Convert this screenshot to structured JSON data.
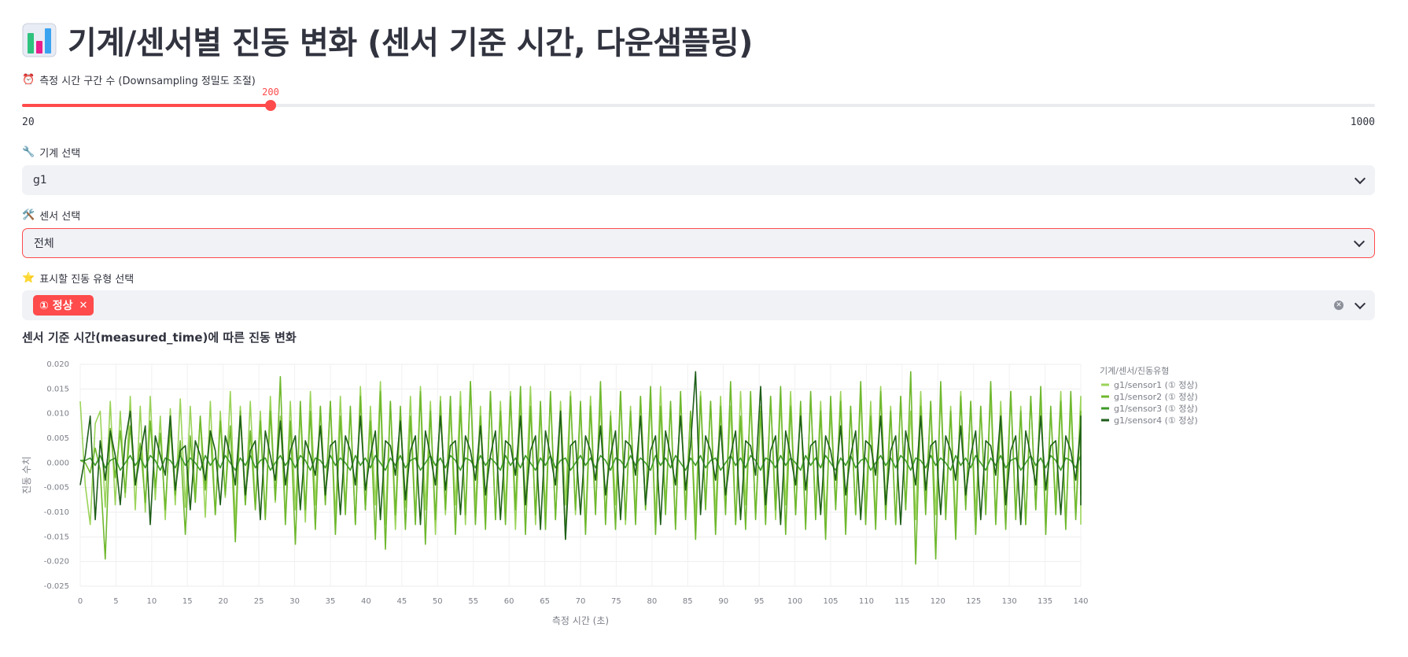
{
  "header": {
    "title": "기계/센서별 진동 변화 (센서 기준 시간, 다운샘플링)",
    "icon": "bar-chart-icon"
  },
  "slider": {
    "label": "측정 시간 구간 수 (Downsampling 정밀도 조절)",
    "icon": "alarm-clock-icon",
    "value": "200",
    "min": "20",
    "max": "1000"
  },
  "machine_select": {
    "label": "기계 선택",
    "icon": "wrench-icon",
    "value": "g1"
  },
  "sensor_select": {
    "label": "센서 선택",
    "icon": "hammer-wrench-icon",
    "value": "전체"
  },
  "vibration_type": {
    "label": "표시할 진동 유형 선택",
    "icon": "star-icon",
    "selected": [
      "① 정상"
    ]
  },
  "chart_section": {
    "heading": "센서 기준 시간(measured_time)에 따른 진동 변화"
  },
  "chart_data": {
    "type": "line",
    "xlabel": "측정 시간 (초)",
    "ylabel": "진동 수치",
    "xlim": [
      0,
      140
    ],
    "ylim": [
      -0.025,
      0.02
    ],
    "x_ticks": [
      "0",
      "5",
      "10",
      "15",
      "20",
      "25",
      "30",
      "35",
      "40",
      "45",
      "50",
      "55",
      "60",
      "65",
      "70",
      "75",
      "80",
      "85",
      "90",
      "95",
      "100",
      "105",
      "110",
      "115",
      "120",
      "125",
      "130",
      "135",
      "140"
    ],
    "y_ticks": [
      "0.020",
      "0.015",
      "0.010",
      "0.005",
      "0.000",
      "-0.005",
      "-0.010",
      "-0.015",
      "-0.020",
      "-0.025"
    ],
    "legend_title": "기계/센서/진동유형",
    "legend_position": "right",
    "grid": true,
    "x_step": 0.7,
    "series": [
      {
        "name": "g1/sensor1 (① 정상)",
        "color": "#9bd35a",
        "values": [
          0.0125,
          -0.0045,
          -0.0125,
          0.008,
          0.0105,
          -0.009,
          0.0125,
          -0.0085,
          0.0105,
          -0.007,
          0.0135,
          -0.0095,
          0.0115,
          -0.01,
          0.0135,
          -0.0075,
          0.0095,
          -0.0115,
          0.011,
          -0.0085,
          0.013,
          -0.009,
          0.0115,
          -0.0065,
          0.009,
          -0.011,
          0.0125,
          -0.0105,
          0.0105,
          -0.007,
          0.0145,
          -0.0125,
          0.0115,
          -0.0085,
          0.0125,
          -0.009,
          0.0105,
          -0.011,
          0.0135,
          -0.008,
          0.0095,
          -0.0115,
          0.0125,
          -0.0095,
          0.0105,
          -0.012,
          0.0145,
          -0.0085,
          0.0115,
          -0.0075,
          0.0125,
          -0.011,
          0.0135,
          -0.009,
          0.0105,
          -0.0125,
          0.0155,
          -0.0095,
          0.0115,
          -0.0085,
          0.0165,
          -0.0125,
          0.0125,
          -0.0135,
          0.0105,
          -0.009,
          0.0135,
          -0.0115,
          0.0155,
          -0.0095,
          0.0125,
          -0.0145,
          0.0135,
          -0.0105,
          0.0105,
          -0.0085,
          0.0145,
          -0.0125,
          0.0165,
          -0.0095,
          0.0115,
          -0.0105,
          0.0135,
          -0.0115,
          0.0125,
          -0.0095,
          0.0145,
          -0.0135,
          0.0115,
          -0.0085,
          0.0155,
          -0.0125,
          0.0105,
          -0.0095,
          0.0135,
          -0.0115,
          0.0125,
          -0.0085,
          0.0145,
          -0.0105,
          0.0115,
          -0.0125,
          0.0135,
          -0.0095,
          0.0125,
          -0.0115,
          0.0105,
          -0.0085,
          0.0145,
          -0.0125,
          0.0115,
          -0.0105,
          0.0135,
          -0.0095,
          0.0125,
          -0.0115,
          0.0155,
          -0.0085,
          0.0115,
          -0.0125,
          0.0135,
          -0.0095,
          0.0105,
          -0.0115,
          0.0145,
          -0.0085,
          0.0125,
          -0.0105,
          0.0135,
          -0.0095,
          0.0115,
          -0.0125,
          0.0145,
          -0.0085,
          0.0125,
          -0.0105,
          0.0115,
          -0.0095,
          0.0135,
          -0.0115,
          0.0125,
          -0.0085,
          0.0145,
          -0.0105,
          0.0115,
          -0.0125,
          0.0135,
          -0.0095,
          0.0125,
          -0.0115,
          0.0105,
          -0.0085,
          0.0145,
          -0.0125,
          0.0115,
          -0.0105,
          0.0135,
          -0.0095,
          0.0125,
          -0.0115,
          0.0155,
          -0.0085,
          0.0115,
          -0.0125,
          0.0135,
          -0.0095,
          0.0105,
          -0.0115,
          0.0145,
          -0.0085,
          0.0125,
          -0.0105,
          0.0135,
          -0.0095,
          0.0115,
          -0.0125,
          0.0145,
          -0.0085,
          0.0125,
          -0.0105,
          0.0115,
          -0.0095,
          0.0135,
          -0.0115,
          0.0125,
          -0.0085,
          0.0145,
          -0.0105,
          0.0115,
          -0.0125,
          0.0135,
          -0.0095,
          0.0125,
          -0.0115,
          0.0105,
          -0.0085,
          0.0145,
          -0.0125,
          0.0115,
          -0.0105,
          0.0135,
          -0.0095,
          0.0125,
          -0.0125
        ]
      },
      {
        "name": "g1/sensor2 (① 정상)",
        "color": "#6fb82e",
        "values": [
          0.0005,
          0.0,
          -0.002,
          0.003,
          -0.0015,
          -0.0195,
          0.007,
          -0.003,
          0.0065,
          -0.006,
          0.0075,
          -0.0045,
          0.004,
          -0.008,
          0.0085,
          -0.005,
          0.006,
          -0.0095,
          0.0075,
          -0.0065,
          0.0045,
          -0.0145,
          0.0055,
          -0.008,
          0.0095,
          -0.0055,
          0.0065,
          -0.0105,
          0.0085,
          -0.0065,
          0.0075,
          -0.016,
          0.0105,
          -0.0085,
          0.0065,
          -0.0095,
          0.0085,
          -0.0115,
          0.0105,
          -0.0075,
          0.0175,
          -0.0125,
          0.0085,
          -0.0165,
          0.0125,
          -0.0095,
          0.0105,
          -0.0135,
          0.0115,
          -0.0085,
          0.0125,
          -0.0145,
          0.0095,
          -0.0105,
          0.0115,
          -0.0125,
          0.0135,
          -0.0095,
          0.0085,
          -0.0155,
          0.0145,
          -0.0175,
          0.0125,
          -0.0105,
          0.0115,
          -0.0135,
          0.0095,
          -0.0125,
          0.0145,
          -0.0165,
          0.0105,
          -0.0115,
          0.0125,
          -0.0095,
          0.0135,
          -0.0145,
          0.0115,
          -0.0105,
          0.0165,
          -0.0125,
          0.0095,
          -0.0135,
          0.0145,
          -0.0115,
          0.0105,
          -0.0125,
          0.0135,
          -0.0095,
          0.0155,
          -0.0145,
          0.0115,
          -0.0105,
          0.0125,
          -0.0135,
          0.0145,
          -0.0115,
          0.0105,
          -0.0155,
          0.0135,
          -0.0095,
          0.0125,
          -0.0145,
          0.0115,
          -0.0105,
          0.0165,
          -0.0125,
          0.0095,
          -0.0135,
          0.0145,
          -0.0115,
          0.0105,
          -0.0125,
          0.0135,
          -0.0095,
          0.0155,
          -0.0145,
          0.0115,
          -0.0105,
          0.0125,
          -0.0135,
          0.0145,
          -0.0115,
          0.0105,
          -0.0155,
          0.0135,
          -0.0095,
          0.0125,
          -0.0145,
          0.0115,
          -0.0105,
          0.0165,
          -0.0125,
          0.0095,
          -0.0135,
          0.0145,
          -0.0115,
          0.0105,
          -0.0125,
          0.0135,
          -0.0095,
          0.0155,
          -0.0145,
          0.0115,
          -0.0105,
          0.0125,
          -0.0135,
          0.0145,
          -0.0115,
          0.0105,
          -0.0155,
          0.0135,
          -0.0095,
          0.0125,
          -0.0145,
          0.0115,
          -0.0105,
          0.0165,
          -0.0125,
          0.0095,
          -0.0135,
          0.0145,
          -0.0115,
          0.0105,
          -0.0125,
          0.0135,
          -0.0095,
          0.0185,
          -0.0205,
          0.0115,
          -0.0105,
          0.0125,
          -0.0195,
          0.0165,
          -0.0115,
          0.0105,
          -0.0155,
          0.0135,
          -0.0095,
          0.0125,
          -0.0145,
          0.0115,
          -0.0105,
          0.0165,
          -0.0125,
          0.0095,
          -0.0135,
          0.0145,
          -0.0115,
          0.0105,
          -0.0125,
          0.0135,
          -0.0095,
          0.0155,
          -0.0145,
          0.0115,
          -0.0105,
          0.0125,
          -0.0135,
          0.0145,
          -0.0115,
          0.0105,
          -0.0065,
          0.0045
        ]
      },
      {
        "name": "g1/sensor3 (① 정상)",
        "color": "#3f9a2a",
        "values": [
          0.0005,
          0.0005,
          0.001,
          -0.0005,
          0.0015,
          -0.001,
          0.0005,
          0.001,
          -0.0015,
          0.0,
          0.0015,
          -0.0005,
          0.001,
          -0.001,
          0.0015,
          0.0005,
          -0.0015,
          0.001,
          0.0005,
          -0.001,
          0.0015,
          -0.0005,
          0.001,
          0.0,
          -0.0015,
          0.0015,
          -0.0005,
          0.001,
          -0.001,
          0.0015,
          0.0,
          -0.0015,
          0.001,
          -0.0005,
          0.0015,
          -0.001,
          0.0005,
          0.001,
          -0.0015,
          0.0,
          0.0015,
          -0.0005,
          0.001,
          -0.001,
          0.0015,
          0.0005,
          -0.0015,
          0.001,
          0.0005,
          -0.001,
          0.0015,
          -0.0005,
          0.001,
          0.0,
          -0.0015,
          0.0015,
          -0.0005,
          0.001,
          -0.001,
          0.0015,
          0.0,
          -0.0015,
          0.001,
          -0.0005,
          0.0015,
          -0.001,
          0.0005,
          0.001,
          -0.0015,
          0.0,
          0.0015,
          -0.0005,
          0.001,
          -0.001,
          0.0015,
          0.0005,
          -0.0015,
          0.001,
          0.0005,
          -0.001,
          0.0015,
          -0.0005,
          0.001,
          0.0,
          -0.0015,
          0.0015,
          -0.0005,
          0.001,
          -0.001,
          0.0015,
          0.0,
          -0.0015,
          0.001,
          -0.0005,
          0.0015,
          -0.001,
          0.0005,
          0.001,
          -0.0015,
          0.0,
          0.0015,
          -0.0005,
          0.001,
          -0.001,
          0.0015,
          0.0005,
          -0.0015,
          0.001,
          0.0005,
          -0.001,
          0.0015,
          -0.0005,
          0.001,
          0.0,
          -0.0015,
          0.0015,
          -0.0005,
          0.001,
          -0.001,
          0.0015,
          0.0,
          -0.0015,
          0.001,
          -0.0005,
          0.0015,
          -0.001,
          0.0005,
          0.001,
          -0.0015,
          0.0,
          0.0015,
          -0.0005,
          0.001,
          -0.001,
          0.0015,
          0.0005,
          -0.0015,
          0.001,
          0.0005,
          -0.001,
          0.0015,
          -0.0005,
          0.001,
          0.0,
          -0.0015,
          0.0015,
          -0.0005,
          0.001,
          -0.001,
          0.0015,
          0.0,
          -0.0015,
          0.001,
          -0.0005,
          0.0015,
          -0.001,
          0.0005,
          0.001,
          -0.0015,
          0.0,
          0.0015,
          -0.0005,
          0.001,
          -0.001,
          0.0015,
          0.0005,
          -0.0015,
          0.001,
          0.0005,
          -0.001,
          0.0015,
          -0.0005,
          0.001,
          0.0,
          -0.0015,
          0.0015,
          -0.0005,
          0.001,
          -0.001,
          0.0015,
          0.0,
          -0.0015,
          0.001,
          -0.0005,
          0.0015,
          -0.001,
          0.0005,
          0.001,
          -0.0015,
          0.0,
          0.0015,
          -0.0005,
          0.001,
          -0.001,
          0.0015,
          0.0005,
          -0.0015,
          0.001,
          0.0005,
          -0.001,
          0.0015,
          -0.0005,
          0.001,
          0.0
        ]
      },
      {
        "name": "g1/sensor4 (① 정상)",
        "color": "#1e5e1a",
        "values": [
          -0.0045,
          0.0015,
          0.0095,
          -0.0115,
          0.0045,
          -0.0035,
          0.0065,
          0.0015,
          -0.0085,
          0.0045,
          0.0105,
          -0.0045,
          0.0015,
          0.0075,
          -0.0125,
          0.0055,
          0.0015,
          -0.0025,
          0.0095,
          -0.0055,
          0.0025,
          0.0035,
          -0.0095,
          0.0045,
          0.0015,
          -0.0035,
          0.0065,
          0.0025,
          -0.0085,
          0.0055,
          0.0015,
          -0.0045,
          0.0095,
          -0.0065,
          0.0025,
          0.0045,
          -0.0115,
          0.0065,
          0.0015,
          -0.0035,
          0.0085,
          -0.0045,
          0.0025,
          0.0055,
          -0.0095,
          0.0045,
          0.0015,
          -0.0025,
          0.0075,
          -0.0065,
          0.0035,
          0.0045,
          -0.0105,
          0.0055,
          0.0025,
          -0.0045,
          0.0095,
          -0.0055,
          0.0015,
          0.0065,
          -0.0115,
          0.0045,
          0.0035,
          -0.0025,
          0.0085,
          -0.0075,
          0.0025,
          0.0055,
          -0.0125,
          0.0065,
          0.0015,
          -0.0045,
          0.0095,
          -0.0055,
          0.0035,
          0.0045,
          -0.0105,
          0.0055,
          0.0025,
          -0.0035,
          0.0075,
          -0.0065,
          0.0015,
          0.0065,
          -0.0115,
          0.0045,
          0.0035,
          -0.0025,
          0.0095,
          -0.0085,
          0.0025,
          0.0055,
          -0.0135,
          0.0065,
          0.0015,
          -0.0045,
          0.0105,
          -0.0155,
          0.0035,
          0.0045,
          -0.0105,
          0.0055,
          0.0025,
          -0.0035,
          0.0075,
          -0.0065,
          0.0015,
          0.0065,
          -0.0115,
          0.0045,
          0.0035,
          -0.0025,
          0.0095,
          -0.0085,
          0.0025,
          0.0055,
          -0.0125,
          0.0065,
          0.0015,
          -0.0045,
          0.0095,
          -0.0055,
          0.0035,
          0.0185,
          -0.0105,
          0.0055,
          0.0025,
          -0.0035,
          0.0075,
          -0.0065,
          0.0015,
          0.0065,
          -0.0115,
          0.0045,
          0.0035,
          -0.0025,
          0.0155,
          -0.0085,
          0.0025,
          0.0055,
          -0.0125,
          0.0065,
          0.0015,
          -0.0045,
          0.0095,
          -0.0055,
          0.0035,
          0.0045,
          -0.0105,
          0.0055,
          0.0025,
          -0.0035,
          0.0075,
          -0.0065,
          0.0015,
          0.0065,
          -0.0115,
          0.0045,
          0.0035,
          -0.0025,
          0.0095,
          -0.0085,
          0.0025,
          0.0055,
          -0.0125,
          0.0065,
          0.0015,
          -0.0045,
          0.0095,
          -0.0055,
          0.0035,
          0.0045,
          -0.0105,
          0.0055,
          0.0025,
          -0.0035,
          0.0075,
          -0.0065,
          0.0015,
          0.0065,
          -0.0115,
          0.0045,
          0.0035,
          -0.0025,
          0.0095,
          -0.0085,
          0.0025,
          0.0055,
          -0.0125,
          0.0065,
          0.0015,
          -0.0045,
          0.0095,
          -0.0055,
          0.0035,
          0.0045,
          -0.0105,
          0.0055,
          0.0025,
          -0.0035,
          0.0075,
          -0.0065,
          0.0015,
          0.0095,
          -0.0085,
          0.0025,
          -0.002
        ]
      }
    ]
  }
}
